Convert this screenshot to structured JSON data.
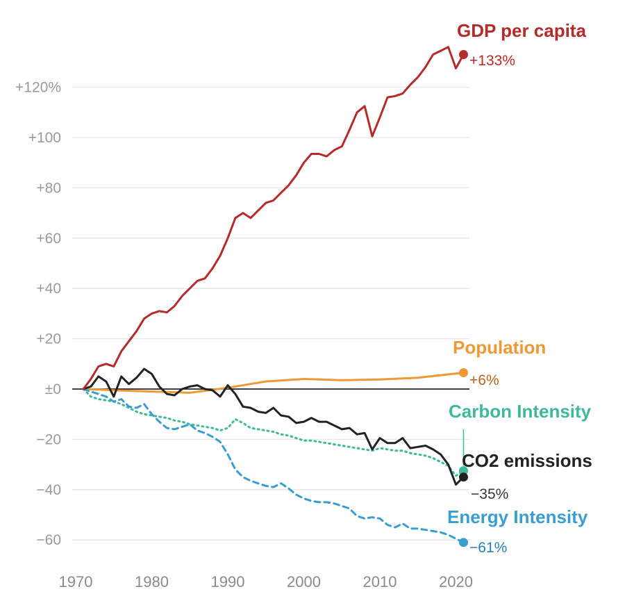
{
  "chart_data": {
    "type": "line",
    "title": "",
    "xlabel": "",
    "ylabel": "",
    "xlim": [
      1970,
      2022
    ],
    "ylim": [
      -65,
      140
    ],
    "grid": "horizontal",
    "x_ticks": [
      {
        "value": 1970,
        "label": "1970"
      },
      {
        "value": 1980,
        "label": "1980"
      },
      {
        "value": 1990,
        "label": "1990"
      },
      {
        "value": 2000,
        "label": "2000"
      },
      {
        "value": 2010,
        "label": "2010"
      },
      {
        "value": 2020,
        "label": "2020"
      }
    ],
    "y_ticks": [
      {
        "value": 120,
        "label": "+120%"
      },
      {
        "value": 100,
        "label": "+100"
      },
      {
        "value": 80,
        "label": "+80"
      },
      {
        "value": 60,
        "label": "+60"
      },
      {
        "value": 40,
        "label": "+40"
      },
      {
        "value": 20,
        "label": "+20"
      },
      {
        "value": 0,
        "label": "±0"
      },
      {
        "value": -20,
        "label": "−20"
      },
      {
        "value": -40,
        "label": "−40"
      },
      {
        "value": -60,
        "label": "−60"
      }
    ],
    "series": [
      {
        "key": "gdp",
        "name": "GDP per capita",
        "end_label": "+133%",
        "color": "#b52a2a",
        "dash": "solid",
        "x": [
          1971,
          1972,
          1973,
          1974,
          1975,
          1976,
          1977,
          1978,
          1979,
          1980,
          1981,
          1982,
          1983,
          1984,
          1985,
          1986,
          1987,
          1988,
          1989,
          1990,
          1991,
          1992,
          1993,
          1994,
          1995,
          1996,
          1997,
          1998,
          1999,
          2000,
          2001,
          2002,
          2003,
          2004,
          2005,
          2006,
          2007,
          2008,
          2009,
          2010,
          2011,
          2012,
          2013,
          2014,
          2015,
          2016,
          2017,
          2018,
          2019,
          2020,
          2021
        ],
        "y": [
          0,
          4,
          9,
          10,
          9,
          15,
          19,
          23,
          28,
          30,
          31,
          30.5,
          33,
          37,
          40,
          43,
          44,
          48,
          53,
          60,
          68,
          70,
          68,
          71,
          74,
          75,
          78,
          81,
          85,
          90,
          93.5,
          93.5,
          92.5,
          95,
          96.5,
          103,
          110,
          112.5,
          100.5,
          108,
          116,
          116.5,
          117.5,
          121,
          124,
          128,
          133,
          134.5,
          136,
          127.5,
          133
        ]
      },
      {
        "key": "population",
        "name": "Population",
        "end_label": "+6%",
        "color": "#ee9935",
        "dash": "solid",
        "x": [
          1971,
          1975,
          1980,
          1985,
          1990,
          1995,
          2000,
          2005,
          2010,
          2015,
          2021
        ],
        "y": [
          0,
          -0.5,
          -1,
          -1.5,
          0.5,
          3,
          4,
          3.5,
          3.8,
          4.5,
          6.5
        ]
      },
      {
        "key": "co2",
        "name": "CO2 emissions",
        "end_label": "−35%",
        "color": "#222222",
        "dash": "solid",
        "x": [
          1971,
          1972,
          1973,
          1974,
          1975,
          1976,
          1977,
          1978,
          1979,
          1980,
          1981,
          1982,
          1983,
          1984,
          1985,
          1986,
          1987,
          1988,
          1989,
          1990,
          1991,
          1992,
          1993,
          1994,
          1995,
          1996,
          1997,
          1998,
          1999,
          2000,
          2001,
          2002,
          2003,
          2004,
          2005,
          2006,
          2007,
          2008,
          2009,
          2010,
          2011,
          2012,
          2013,
          2014,
          2015,
          2016,
          2017,
          2018,
          2019,
          2020,
          2021
        ],
        "y": [
          0,
          1,
          5,
          3,
          -3,
          5,
          2,
          4.5,
          8,
          6,
          1,
          -2,
          -2.5,
          0,
          1,
          1.5,
          0,
          -0.5,
          -3,
          1.5,
          -2,
          -7,
          -7.5,
          -9,
          -9.5,
          -7.5,
          -10.5,
          -11,
          -13.5,
          -13,
          -11.5,
          -13,
          -13,
          -14.5,
          -16,
          -15.5,
          -18,
          -17.5,
          -24,
          -19.5,
          -21.5,
          -21.5,
          -19.5,
          -23.5,
          -23,
          -22.5,
          -24,
          -26,
          -30,
          -38,
          -35
        ]
      },
      {
        "key": "carbon",
        "name": "Carbon Intensity",
        "end_label": "",
        "color": "#3fb89c",
        "dash": "dotted",
        "x": [
          1971,
          1972,
          1973,
          1974,
          1975,
          1976,
          1977,
          1978,
          1979,
          1980,
          1981,
          1982,
          1983,
          1984,
          1985,
          1986,
          1987,
          1988,
          1989,
          1990,
          1991,
          1992,
          1993,
          1994,
          1995,
          1996,
          1997,
          1998,
          1999,
          2000,
          2001,
          2002,
          2003,
          2004,
          2005,
          2006,
          2007,
          2008,
          2009,
          2010,
          2011,
          2012,
          2013,
          2014,
          2015,
          2016,
          2017,
          2018,
          2019,
          2020,
          2021
        ],
        "y": [
          0,
          -3,
          -4,
          -4.5,
          -5,
          -6,
          -7.5,
          -9,
          -10,
          -10.5,
          -11,
          -11.5,
          -12.5,
          -13,
          -14,
          -14.5,
          -15,
          -15.5,
          -16.5,
          -15.5,
          -12,
          -13.5,
          -15.5,
          -16,
          -16.5,
          -17,
          -18,
          -18.5,
          -19.5,
          -20.5,
          -20.5,
          -21,
          -21.5,
          -22,
          -22.5,
          -23,
          -23.5,
          -24,
          -24.5,
          -23.5,
          -24,
          -24.5,
          -24.5,
          -25.5,
          -26,
          -26.5,
          -27.5,
          -29,
          -30.5,
          -34.5,
          -32.5
        ]
      },
      {
        "key": "energy",
        "name": "Energy Intensity",
        "end_label": "−61%",
        "color": "#3a9dcf",
        "dash": "dashed",
        "x": [
          1971,
          1972,
          1973,
          1974,
          1975,
          1976,
          1977,
          1978,
          1979,
          1980,
          1981,
          1982,
          1983,
          1984,
          1985,
          1986,
          1987,
          1988,
          1989,
          1990,
          1991,
          1992,
          1993,
          1994,
          1995,
          1996,
          1997,
          1998,
          1999,
          2000,
          2001,
          2002,
          2003,
          2004,
          2005,
          2006,
          2007,
          2008,
          2009,
          2010,
          2011,
          2012,
          2013,
          2014,
          2015,
          2016,
          2017,
          2018,
          2019,
          2020,
          2021
        ],
        "y": [
          0,
          -1,
          -2,
          -3,
          -5,
          -4,
          -7,
          -7.5,
          -6,
          -10,
          -13,
          -15.5,
          -16,
          -15,
          -14,
          -16.5,
          -17.5,
          -19,
          -21,
          -26,
          -32,
          -35,
          -36.5,
          -37.5,
          -38.5,
          -39,
          -37.5,
          -39.5,
          -42,
          -43.5,
          -44.5,
          -45,
          -45,
          -45.5,
          -46.5,
          -47.5,
          -50.5,
          -51.5,
          -51,
          -51.5,
          -54,
          -55,
          -53.5,
          -55.5,
          -55.5,
          -56,
          -56.5,
          -57,
          -58,
          -59.5,
          -61
        ]
      }
    ]
  }
}
